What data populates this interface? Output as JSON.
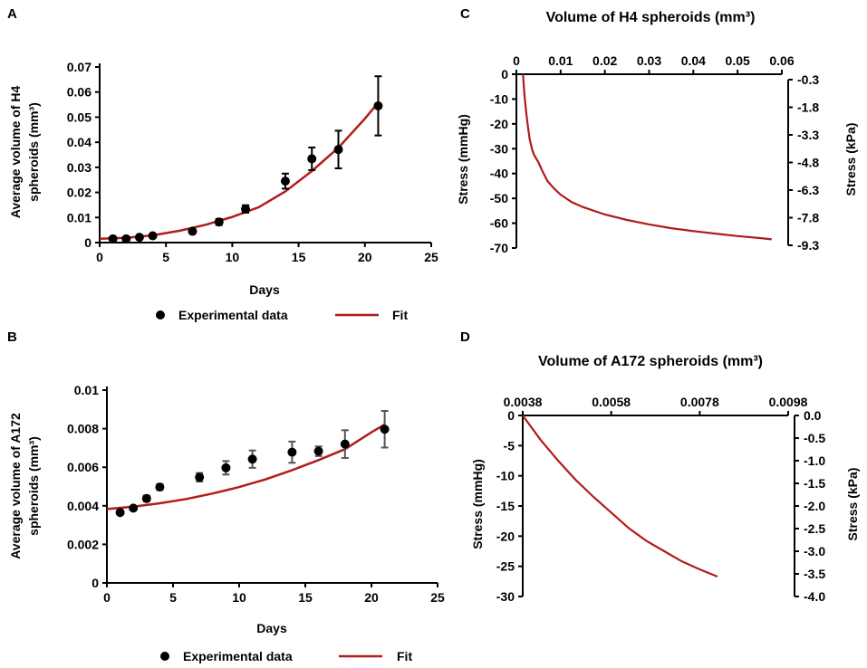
{
  "panels": {
    "A": {
      "letter": "A"
    },
    "B": {
      "letter": "B"
    },
    "C": {
      "letter": "C"
    },
    "D": {
      "letter": "D"
    }
  },
  "legend": {
    "experimental": "Experimental data",
    "fit": "Fit"
  },
  "chart_data": [
    {
      "id": "A",
      "type": "scatter",
      "xlabel": "Days",
      "ylabel_line1": "Average volume of H4",
      "ylabel_line2": "spheroids (mm³)",
      "xlim": [
        0,
        25
      ],
      "ylim": [
        0,
        0.07
      ],
      "xticks": [
        "0",
        "5",
        "10",
        "15",
        "20",
        "25"
      ],
      "yticks": [
        "0",
        "0.01",
        "0.02",
        "0.03",
        "0.04",
        "0.05",
        "0.06",
        "0.07"
      ],
      "series": [
        {
          "name": "Experimental data",
          "x": [
            1,
            2,
            3,
            4,
            7,
            9,
            11,
            14,
            16,
            18,
            21
          ],
          "y": [
            0.0015,
            0.0015,
            0.0021,
            0.0027,
            0.0045,
            0.0082,
            0.0134,
            0.0245,
            0.0334,
            0.0371,
            0.0545
          ],
          "err": [
            0.0003,
            0.0003,
            0.0004,
            0.0005,
            0.0006,
            0.0012,
            0.0015,
            0.003,
            0.0045,
            0.0075,
            0.0118
          ]
        },
        {
          "name": "Fit",
          "x": [
            0,
            2,
            4,
            6,
            8,
            10,
            12,
            14,
            16,
            18,
            20,
            21
          ],
          "y": [
            0.0015,
            0.0019,
            0.0029,
            0.0047,
            0.0071,
            0.0102,
            0.0141,
            0.0204,
            0.0285,
            0.0378,
            0.0494,
            0.0558
          ]
        }
      ]
    },
    {
      "id": "B",
      "type": "scatter",
      "xlabel": "Days",
      "ylabel_line1": "Average volume of A172",
      "ylabel_line2": "spheroids (mm³)",
      "xlim": [
        0,
        25
      ],
      "ylim": [
        0,
        0.01
      ],
      "xticks": [
        "0",
        "5",
        "10",
        "15",
        "20",
        "25"
      ],
      "yticks": [
        "0",
        "0.002",
        "0.004",
        "0.006",
        "0.008",
        "0.01"
      ],
      "series": [
        {
          "name": "Experimental data",
          "x": [
            1,
            2,
            3,
            4,
            7,
            9,
            11,
            14,
            16,
            18,
            21
          ],
          "y": [
            0.00365,
            0.00388,
            0.00438,
            0.00497,
            0.00548,
            0.00597,
            0.00642,
            0.00678,
            0.00683,
            0.0072,
            0.00797
          ],
          "err": [
            0.0001,
            0.0001,
            0.00015,
            0.00015,
            0.00022,
            0.00035,
            0.00045,
            0.00055,
            0.00025,
            0.00072,
            0.00095
          ]
        },
        {
          "name": "Fit",
          "x": [
            0,
            2,
            4,
            6,
            8,
            10,
            12,
            14,
            16,
            18,
            20,
            21
          ],
          "y": [
            0.00383,
            0.00396,
            0.00413,
            0.00435,
            0.00464,
            0.00497,
            0.00537,
            0.00585,
            0.00637,
            0.00694,
            0.00781,
            0.00822
          ]
        }
      ]
    },
    {
      "id": "C",
      "type": "line",
      "title": "Volume of H4 spheroids (mm³)",
      "ylabel_left": "Stress (mmHg)",
      "ylabel_right": "Stress (kPa)",
      "xlim": [
        0,
        0.06
      ],
      "ylim": [
        -70,
        0
      ],
      "xticks": [
        "0",
        "0.01",
        "0.02",
        "0.03",
        "0.04",
        "0.05",
        "0.06"
      ],
      "yticks_left": [
        "0",
        "-10",
        "-20",
        "-30",
        "-40",
        "-50",
        "-60",
        "-70"
      ],
      "yticks_right": [
        "-0.3",
        "-1.8",
        "-3.3",
        "-4.8",
        "-6.3",
        "-7.8",
        "-9.3"
      ],
      "series": [
        {
          "name": "Stress",
          "x": [
            0.0015,
            0.0018,
            0.0022,
            0.0026,
            0.003,
            0.0035,
            0.004,
            0.005,
            0.006,
            0.007,
            0.0085,
            0.01,
            0.0125,
            0.015,
            0.02,
            0.025,
            0.03,
            0.035,
            0.04,
            0.045,
            0.05,
            0.055,
            0.0577
          ],
          "y": [
            0,
            -8,
            -15,
            -21,
            -26,
            -30,
            -32.5,
            -35.5,
            -39.5,
            -43,
            -46,
            -48.5,
            -51.5,
            -53.5,
            -56.5,
            -58.7,
            -60.5,
            -62,
            -63.2,
            -64.2,
            -65.2,
            -66,
            -66.5
          ]
        }
      ]
    },
    {
      "id": "D",
      "type": "line",
      "title": "Volume of A172 spheroids (mm³)",
      "ylabel_left": "Stress (mmHg)",
      "ylabel_right": "Stress (kPa)",
      "xlim": [
        0.0038,
        0.0098
      ],
      "ylim": [
        -30,
        0
      ],
      "xticks": [
        "0.0038",
        "0.0058",
        "0.0078",
        "0.0098"
      ],
      "yticks_left": [
        "0",
        "-5",
        "-10",
        "-15",
        "-20",
        "-25",
        "-30"
      ],
      "yticks_right": [
        "0.0",
        "-0.5",
        "-1.0",
        "-1.5",
        "-2.0",
        "-2.5",
        "-3.0",
        "-3.5",
        "-4.0"
      ],
      "series": [
        {
          "name": "Stress",
          "x": [
            0.0038,
            0.0042,
            0.0046,
            0.005,
            0.0054,
            0.0058,
            0.0062,
            0.0066,
            0.007,
            0.0074,
            0.0078,
            0.0082
          ],
          "y": [
            0,
            -4,
            -7.5,
            -10.7,
            -13.5,
            -16.1,
            -18.7,
            -20.8,
            -22.5,
            -24.2,
            -25.5,
            -26.7
          ]
        }
      ]
    }
  ]
}
